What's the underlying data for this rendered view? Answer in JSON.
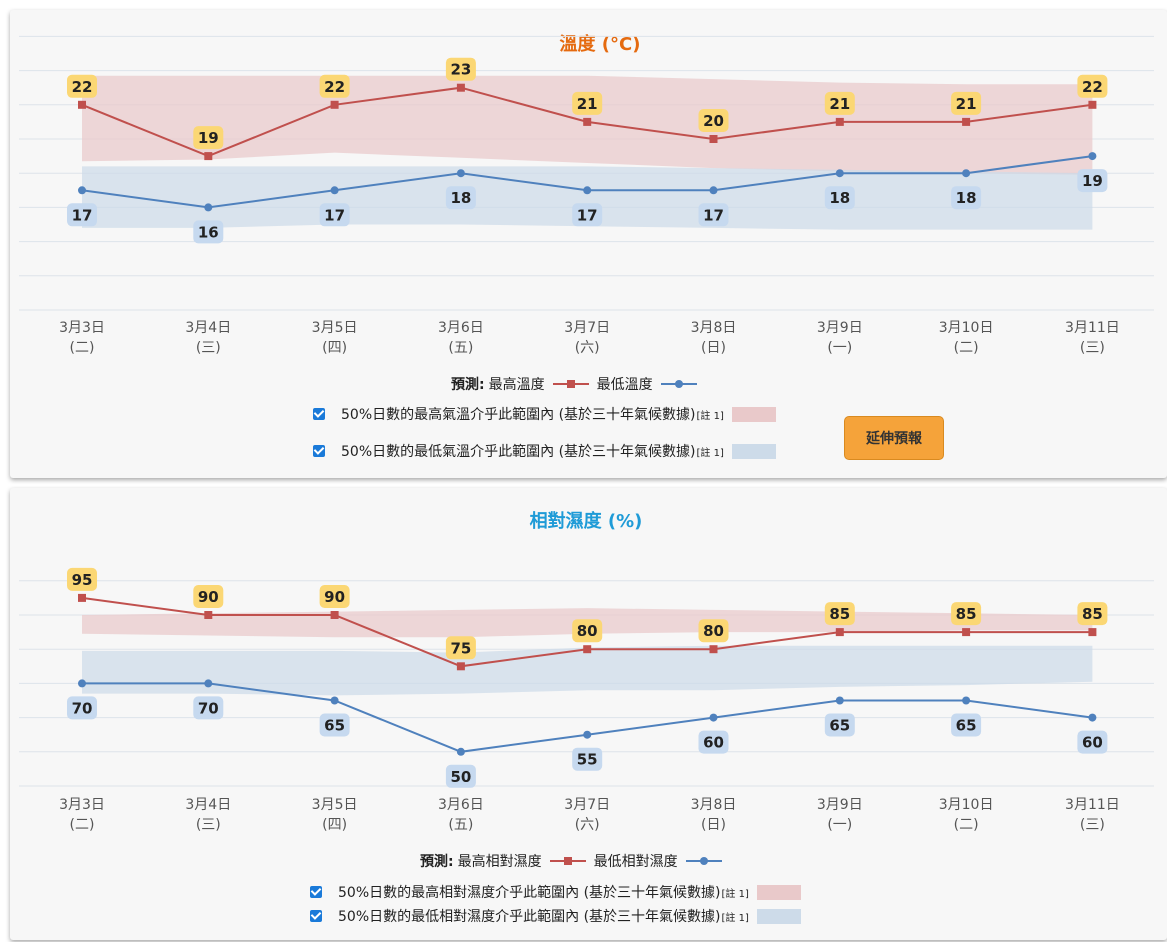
{
  "colors": {
    "max_line": "#c0504d",
    "min_line": "#4f81bd",
    "max_band": "#e9c9ca",
    "min_band": "#cddbe9",
    "label_max_bg": "#fbd774",
    "label_min_bg": "#c6d9ef",
    "temp_title": "#e56a0f",
    "hum_title": "#1f9bd7",
    "grid": "#dde3ea"
  },
  "temperature": {
    "title": "溫度 (°C)",
    "ylim": [
      10,
      27
    ],
    "legend": {
      "prefix": "預測:",
      "max_label": "最高溫度",
      "min_label": "最低溫度",
      "band_max_text": "50%日數的最高氣溫介乎此範圍內 (基於三十年氣候數據)",
      "band_min_text": "50%日數的最低氣溫介乎此範圍內 (基於三十年氣候數據)",
      "note": "[註 1]"
    },
    "extend_button": "延伸預報"
  },
  "humidity": {
    "title": "相對濕度 (%)",
    "ylim": [
      40,
      100
    ],
    "legend": {
      "prefix": "預測:",
      "max_label": "最高相對濕度",
      "min_label": "最低相對濕度",
      "band_max_text": "50%日數的最高相對濕度介乎此範圍內 (基於三十年氣候數據)",
      "band_min_text": "50%日數的最低相對濕度介乎此範圍內 (基於三十年氣候數據)",
      "note": "[註 1]"
    }
  },
  "chart_data": [
    {
      "type": "line",
      "title": "溫度 (°C)",
      "categories": [
        "3月3日",
        "3月4日",
        "3月5日",
        "3月6日",
        "3月7日",
        "3月8日",
        "3月9日",
        "3月10日",
        "3月11日"
      ],
      "weekdays": [
        "(二)",
        "(三)",
        "(四)",
        "(五)",
        "(六)",
        "(日)",
        "(一)",
        "(二)",
        "(三)"
      ],
      "ylim": [
        10,
        27
      ],
      "series": [
        {
          "name": "最高溫度",
          "values": [
            22,
            19,
            22,
            23,
            21,
            20,
            21,
            21,
            22
          ]
        },
        {
          "name": "最低溫度",
          "values": [
            17,
            16,
            17,
            18,
            17,
            17,
            18,
            18,
            19
          ]
        }
      ],
      "bands": [
        {
          "upper": [
            23.7,
            23.7,
            23.7,
            23.7,
            23.7,
            23.5,
            23.3,
            23.2,
            23.2
          ],
          "lower": [
            18.7,
            18.8,
            19.2,
            18.9,
            18.6,
            18.3,
            18.1,
            18.0,
            17.9
          ]
        },
        {
          "upper": [
            18.4,
            18.4,
            18.4,
            18.4,
            18.4,
            18.3,
            18.2,
            18.1,
            18.0
          ],
          "lower": [
            14.8,
            14.8,
            15.0,
            15.0,
            14.9,
            14.8,
            14.7,
            14.7,
            14.7
          ]
        }
      ]
    },
    {
      "type": "line",
      "title": "相對濕度 (%)",
      "categories": [
        "3月3日",
        "3月4日",
        "3月5日",
        "3月6日",
        "3月7日",
        "3月8日",
        "3月9日",
        "3月10日",
        "3月11日"
      ],
      "weekdays": [
        "(二)",
        "(三)",
        "(四)",
        "(五)",
        "(六)",
        "(日)",
        "(一)",
        "(二)",
        "(三)"
      ],
      "ylim": [
        40,
        100
      ],
      "series": [
        {
          "name": "最高相對濕度",
          "values": [
            95,
            90,
            90,
            75,
            80,
            80,
            85,
            85,
            85
          ]
        },
        {
          "name": "最低相對濕度",
          "values": [
            70,
            70,
            65,
            50,
            55,
            60,
            65,
            65,
            60
          ]
        }
      ],
      "bands": [
        {
          "upper": [
            90,
            90.5,
            91,
            91.5,
            92,
            91.5,
            91,
            90.5,
            90
          ],
          "lower": [
            84.5,
            84,
            83.5,
            83.5,
            84.5,
            85,
            85,
            85.5,
            85.5
          ]
        },
        {
          "upper": [
            79.5,
            79.5,
            79.5,
            79,
            80.5,
            81,
            81,
            81,
            81
          ],
          "lower": [
            67,
            67,
            66.5,
            67,
            68,
            68,
            69,
            69.5,
            70.5
          ]
        }
      ]
    }
  ]
}
